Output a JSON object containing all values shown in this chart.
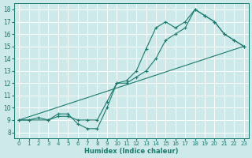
{
  "xlabel": "Humidex (Indice chaleur)",
  "bg_color": "#cde9e9",
  "line_color": "#1a7a6e",
  "grid_color": "#b8d8d8",
  "xlim": [
    -0.5,
    23.5
  ],
  "ylim": [
    7.5,
    18.5
  ],
  "xticks": [
    0,
    1,
    2,
    3,
    4,
    5,
    6,
    7,
    8,
    9,
    10,
    11,
    12,
    13,
    14,
    15,
    16,
    17,
    18,
    19,
    20,
    21,
    22,
    23
  ],
  "yticks": [
    8,
    9,
    10,
    11,
    12,
    13,
    14,
    15,
    16,
    17,
    18
  ],
  "line1_x": [
    0,
    1,
    2,
    3,
    4,
    5,
    6,
    7,
    8,
    9,
    10,
    11,
    12,
    13,
    14,
    15,
    16,
    17,
    18,
    19,
    20,
    21,
    22,
    23
  ],
  "line1_y": [
    9,
    9,
    9.2,
    9,
    9.5,
    9.5,
    8.7,
    8.3,
    8.3,
    10,
    12,
    12.2,
    13,
    14.8,
    16.5,
    17,
    16.5,
    17,
    18,
    17.5,
    17,
    16,
    15.5,
    15
  ],
  "line2_x": [
    0,
    1,
    3,
    4,
    5,
    6,
    7,
    8,
    9,
    10,
    11,
    12,
    13,
    14,
    15,
    16,
    17,
    18,
    19,
    20,
    21,
    22,
    23
  ],
  "line2_y": [
    9,
    9,
    9,
    9.3,
    9.3,
    9,
    9,
    9,
    10.5,
    12,
    12,
    12.5,
    13,
    14,
    15.5,
    16,
    16.5,
    18,
    17.5,
    17,
    16,
    15.5,
    15
  ],
  "line3_x": [
    0,
    23
  ],
  "line3_y": [
    9,
    15
  ]
}
